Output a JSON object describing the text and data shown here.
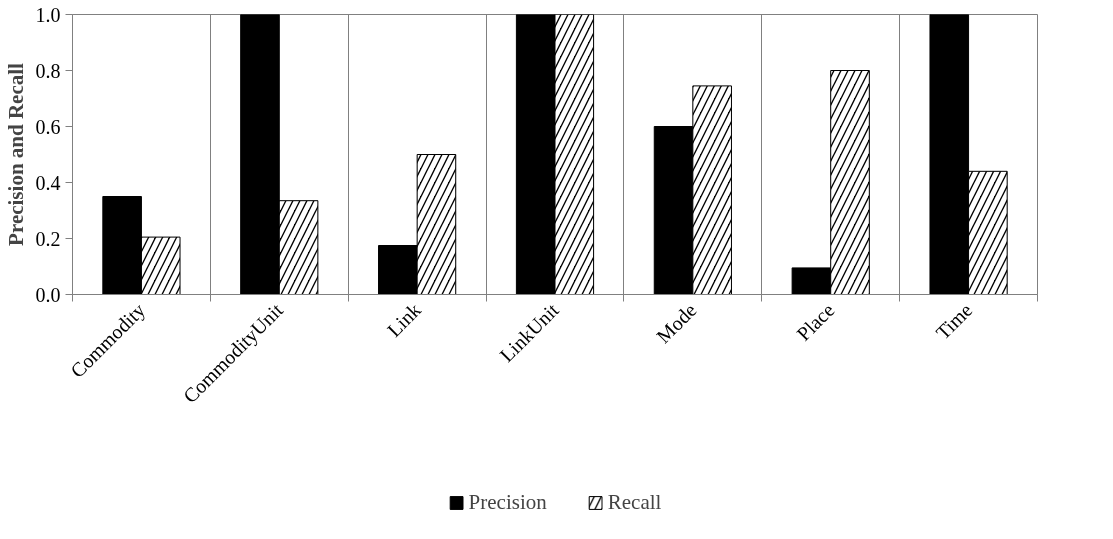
{
  "chart_data": {
    "type": "bar",
    "ylabel": "Precision and Recall",
    "categories": [
      "Commodity",
      "CommodityUnit",
      "Link",
      "LinkUnit",
      "Mode",
      "Place",
      "Time"
    ],
    "series": [
      {
        "name": "Precision",
        "color": "#000000",
        "values": [
          0.35,
          1.0,
          0.175,
          1.0,
          0.6,
          0.095,
          1.0
        ]
      },
      {
        "name": "Recall",
        "color": "#000000",
        "values": [
          0.205,
          0.335,
          0.5,
          1.0,
          0.745,
          0.8,
          0.44
        ]
      }
    ],
    "ylim": [
      0,
      1
    ],
    "yticks": [
      {
        "value": 0,
        "label": "0.0"
      },
      {
        "value": 0.2,
        "label": "0.2"
      },
      {
        "value": 0.4,
        "label": "0.4"
      },
      {
        "value": 0.6,
        "label": "0.6"
      },
      {
        "value": 0.8,
        "label": "0.8"
      },
      {
        "value": 1,
        "label": "1.0"
      }
    ],
    "grid": "x",
    "legend": "bottom"
  }
}
